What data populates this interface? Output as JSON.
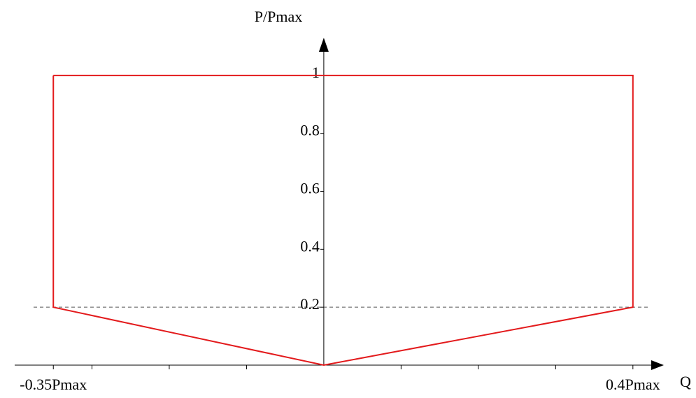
{
  "chart_data": {
    "type": "line",
    "x_label": "Q",
    "y_label": "P/Pmax",
    "series": [
      {
        "color": "#e31a1c",
        "x": [
          -0.35,
          0.4,
          0.4,
          0,
          -0.35,
          -0.35
        ],
        "values": [
          1,
          1,
          0.2,
          0,
          0.2,
          1
        ]
      }
    ],
    "hlines": [
      0.2
    ],
    "xlim": [
      -0.4,
      0.44
    ],
    "ylim": [
      0,
      1.13
    ],
    "xticks": [
      {
        "value": -0.35,
        "label": "-0.35Pmax"
      },
      {
        "value": 0.4,
        "label": "0.4Pmax"
      }
    ],
    "xminor_ticks": [
      -0.3,
      -0.2,
      -0.1,
      0.1,
      0.2,
      0.3
    ],
    "yticks": [
      0.2,
      0.4,
      0.6,
      0.8,
      1
    ]
  }
}
